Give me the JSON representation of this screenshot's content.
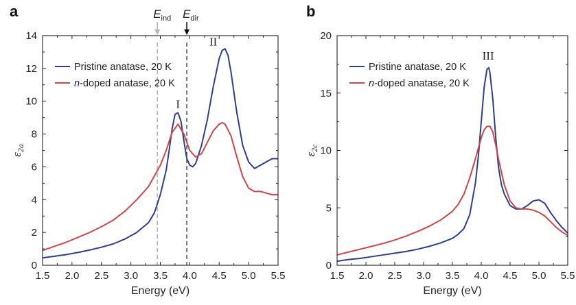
{
  "panel_a": {
    "letter": "a"
  },
  "panel_b": {
    "letter": "b"
  },
  "chart_data": [
    {
      "type": "line",
      "panel": "a",
      "xlabel": "Energy (eV)",
      "ylabel_main": "ε",
      "ylabel_sub": "2a",
      "xlim": [
        1.5,
        5.5
      ],
      "ylim": [
        0,
        14
      ],
      "xticks": [
        "1.5",
        "2.0",
        "2.5",
        "3.0",
        "3.5",
        "4.0",
        "4.5",
        "5.0",
        "5.5"
      ],
      "yticks": [
        "0",
        "2",
        "4",
        "6",
        "8",
        "10",
        "12",
        "14"
      ],
      "series": [
        {
          "name": "Pristine anatase, 20 K",
          "color": "#2e3e8c",
          "x": [
            1.5,
            1.7,
            1.9,
            2.1,
            2.3,
            2.5,
            2.7,
            2.9,
            3.1,
            3.3,
            3.4,
            3.5,
            3.6,
            3.65,
            3.7,
            3.75,
            3.8,
            3.85,
            3.9,
            3.95,
            4.0,
            4.05,
            4.1,
            4.2,
            4.3,
            4.4,
            4.5,
            4.55,
            4.6,
            4.65,
            4.7,
            4.8,
            4.9,
            5.0,
            5.1,
            5.2,
            5.3,
            5.4,
            5.5
          ],
          "y": [
            0.45,
            0.55,
            0.65,
            0.78,
            0.93,
            1.1,
            1.3,
            1.6,
            2.0,
            2.6,
            3.2,
            4.3,
            5.8,
            7.0,
            8.3,
            9.2,
            9.3,
            8.8,
            7.6,
            6.5,
            6.1,
            6.0,
            6.2,
            7.3,
            8.9,
            10.9,
            12.6,
            13.1,
            13.2,
            12.8,
            11.8,
            9.3,
            7.3,
            6.3,
            5.9,
            6.1,
            6.3,
            6.5,
            6.5
          ]
        },
        {
          "name": "n-doped anatase, 20 K",
          "color": "#d04545",
          "x": [
            1.5,
            1.7,
            1.9,
            2.1,
            2.3,
            2.5,
            2.7,
            2.9,
            3.1,
            3.3,
            3.5,
            3.6,
            3.7,
            3.8,
            3.9,
            4.0,
            4.1,
            4.2,
            4.3,
            4.4,
            4.5,
            4.55,
            4.6,
            4.7,
            4.8,
            4.9,
            5.0,
            5.1,
            5.2,
            5.3,
            5.4,
            5.5
          ],
          "y": [
            0.9,
            1.15,
            1.4,
            1.7,
            2.0,
            2.35,
            2.75,
            3.3,
            4.0,
            4.8,
            6.1,
            7.0,
            8.1,
            8.6,
            8.0,
            7.0,
            6.6,
            6.8,
            7.5,
            8.2,
            8.6,
            8.7,
            8.6,
            7.9,
            6.6,
            5.4,
            4.7,
            4.5,
            4.5,
            4.4,
            4.3,
            4.3
          ]
        }
      ],
      "vlines": [
        {
          "label": "E",
          "sub": "ind",
          "x": 3.45,
          "color": "#b5b5b5",
          "arrow_color": "#b5b5b5"
        },
        {
          "label": "E",
          "sub": "dir",
          "x": 3.95,
          "color": "#555555",
          "arrow_color": "#111111"
        }
      ],
      "annotations": [
        {
          "text": "I",
          "x": 3.8,
          "y": 9.6
        },
        {
          "text": "II",
          "x": 4.4,
          "y": 13.4
        }
      ],
      "legend": "top-left"
    },
    {
      "type": "line",
      "panel": "b",
      "xlabel": "Energy (eV)",
      "ylabel_main": "ε",
      "ylabel_sub": "2c",
      "xlim": [
        1.5,
        5.5
      ],
      "ylim": [
        0,
        20
      ],
      "xticks": [
        "1.5",
        "2.0",
        "2.5",
        "3.0",
        "3.5",
        "4.0",
        "4.5",
        "5.0",
        "5.5"
      ],
      "yticks": [
        "0",
        "5",
        "10",
        "15",
        "20"
      ],
      "series": [
        {
          "name": "Pristine anatase, 20 K",
          "color": "#2e3e8c",
          "x": [
            1.5,
            1.7,
            1.9,
            2.1,
            2.3,
            2.5,
            2.7,
            2.9,
            3.1,
            3.3,
            3.5,
            3.6,
            3.7,
            3.8,
            3.9,
            3.95,
            4.0,
            4.05,
            4.1,
            4.13,
            4.15,
            4.2,
            4.25,
            4.3,
            4.35,
            4.4,
            4.5,
            4.6,
            4.7,
            4.8,
            4.9,
            5.0,
            5.1,
            5.2,
            5.3,
            5.4,
            5.5
          ],
          "y": [
            0.35,
            0.5,
            0.6,
            0.75,
            0.9,
            1.05,
            1.2,
            1.4,
            1.65,
            1.95,
            2.35,
            2.7,
            3.2,
            4.4,
            7.2,
            9.5,
            12.5,
            15.5,
            17.1,
            17.2,
            16.8,
            14.5,
            11.2,
            8.5,
            7.0,
            6.2,
            5.2,
            4.9,
            4.9,
            5.2,
            5.6,
            5.7,
            5.4,
            4.6,
            3.9,
            3.3,
            2.8
          ]
        },
        {
          "name": "n-doped anatase, 20 K",
          "color": "#d04545",
          "x": [
            1.5,
            1.7,
            1.9,
            2.1,
            2.3,
            2.5,
            2.7,
            2.9,
            3.1,
            3.3,
            3.5,
            3.6,
            3.7,
            3.8,
            3.9,
            4.0,
            4.05,
            4.1,
            4.15,
            4.2,
            4.25,
            4.3,
            4.4,
            4.5,
            4.6,
            4.7,
            4.8,
            4.9,
            5.0,
            5.1,
            5.2,
            5.3,
            5.4,
            5.5
          ],
          "y": [
            0.9,
            1.15,
            1.4,
            1.65,
            1.9,
            2.2,
            2.55,
            2.95,
            3.4,
            3.95,
            4.7,
            5.3,
            6.2,
            7.6,
            9.3,
            11.1,
            11.8,
            12.1,
            12.1,
            11.6,
            10.5,
            9.2,
            7.0,
            5.6,
            5.0,
            4.9,
            4.9,
            4.8,
            4.6,
            4.3,
            3.8,
            3.3,
            2.9,
            2.6
          ]
        }
      ],
      "annotations": [
        {
          "text": "III",
          "x": 4.12,
          "y": 17.9
        }
      ],
      "legend": "top-left"
    }
  ]
}
